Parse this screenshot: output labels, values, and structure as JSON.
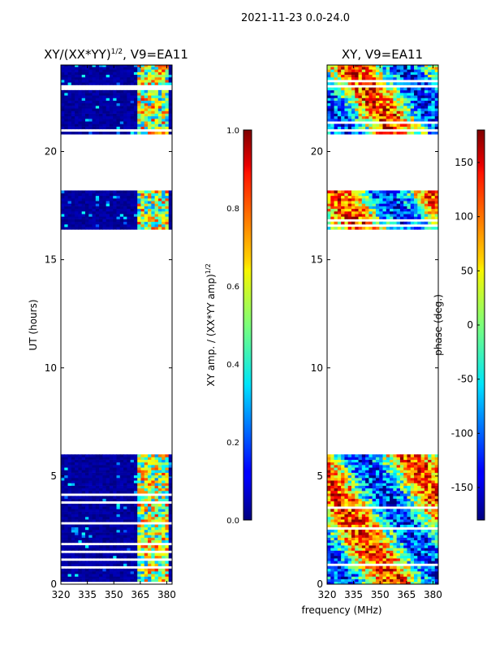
{
  "figure_title": "2021-11-23 0.0-24.0",
  "shared_xlabel": "frequency (MHz)",
  "chart_data": [
    {
      "type": "heatmap",
      "title": "XY/(XX*YY)",
      "title_superscript": "1/2",
      "title_suffix": ", V9=EA11",
      "xlabel": "",
      "ylabel": "UT (hours)",
      "xlim": [
        320,
        383
      ],
      "ylim": [
        0,
        24
      ],
      "xticks": [
        320,
        335,
        350,
        365,
        380
      ],
      "yticks": [
        0,
        5,
        10,
        15,
        20
      ],
      "colorbar": {
        "label": "XY amp. / (XX*YY amp)",
        "label_superscript": "1/2",
        "range": [
          0.0,
          1.0
        ],
        "ticks": [
          "0.0",
          "0.2",
          "0.4",
          "0.6",
          "0.8",
          "1.0"
        ],
        "colormap": "jet"
      },
      "data_blocks_hours": [
        [
          0,
          6.0
        ],
        [
          16.4,
          18.2
        ],
        [
          20.8,
          24.0
        ]
      ],
      "high_value_band_mhz": [
        363,
        380
      ]
    },
    {
      "type": "heatmap",
      "title": "XY, V9=EA11",
      "xlabel": "",
      "ylabel": "",
      "xlim": [
        320,
        383
      ],
      "ylim": [
        0,
        24
      ],
      "xticks": [
        320,
        335,
        350,
        365,
        380
      ],
      "yticks": [
        0,
        5,
        10,
        15,
        20
      ],
      "colorbar": {
        "label": "phase (deg.)",
        "range": [
          -180,
          180
        ],
        "ticks": [
          "-150",
          "-100",
          "-50",
          "0",
          "50",
          "100",
          "150"
        ],
        "tick_values": [
          -150,
          -100,
          -50,
          0,
          50,
          100,
          150
        ],
        "colormap": "jet"
      },
      "data_blocks_hours": [
        [
          0,
          6.0
        ],
        [
          16.4,
          18.2
        ],
        [
          20.8,
          24.0
        ]
      ]
    }
  ]
}
